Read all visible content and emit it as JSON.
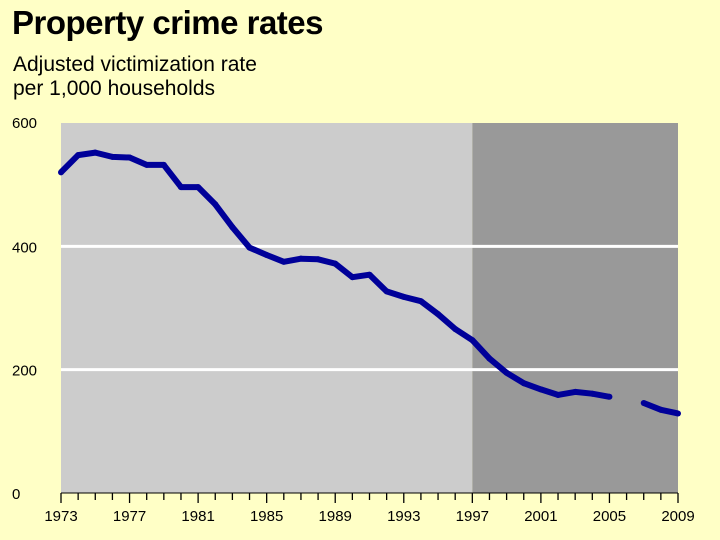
{
  "title": "Property crime rates",
  "subtitle_line1": "Adjusted victimization rate",
  "subtitle_line2": "per 1,000 households",
  "colors": {
    "background": "#ffffc6",
    "plot_light": "#cccccc",
    "plot_dark": "#999999",
    "line": "#000099",
    "grid": "#ffffff"
  },
  "chart_data": {
    "type": "line",
    "title": "Property crime rates",
    "subtitle": "Adjusted victimization rate per 1,000 households",
    "xlabel": "",
    "ylabel": "",
    "xlim": [
      1973,
      2009
    ],
    "ylim": [
      0,
      600
    ],
    "y_ticks": [
      0,
      200,
      400,
      600
    ],
    "x_tick_labels": [
      "1973",
      "1977",
      "1981",
      "1985",
      "1989",
      "1993",
      "1997",
      "2001",
      "2005",
      "2009"
    ],
    "shaded_region": {
      "from": 1997,
      "to": 2009
    },
    "grid": true,
    "series": [
      {
        "segments": [
          {
            "x": [
              1973,
              1974,
              1975,
              1976,
              1977,
              1978,
              1979,
              1980,
              1981,
              1982,
              1983,
              1984,
              1985,
              1986,
              1987,
              1988,
              1989,
              1990,
              1991,
              1992,
              1993,
              1994,
              1995,
              1996,
              1997,
              1998,
              1999,
              2000,
              2001,
              2002,
              2003,
              2004,
              2005
            ],
            "y": [
              520,
              548,
              552,
              545,
              544,
              532,
              532,
              496,
              496,
              468,
              431,
              398,
              386,
              375,
              380,
              379,
              372,
              350,
              354,
              327,
              318,
              311,
              290,
              266,
              248,
              218,
              195,
              178,
              168,
              159,
              164,
              161,
              156
            ]
          },
          {
            "x": [
              2007,
              2008,
              2009
            ],
            "y": [
              146,
              135,
              129
            ]
          }
        ]
      }
    ]
  }
}
